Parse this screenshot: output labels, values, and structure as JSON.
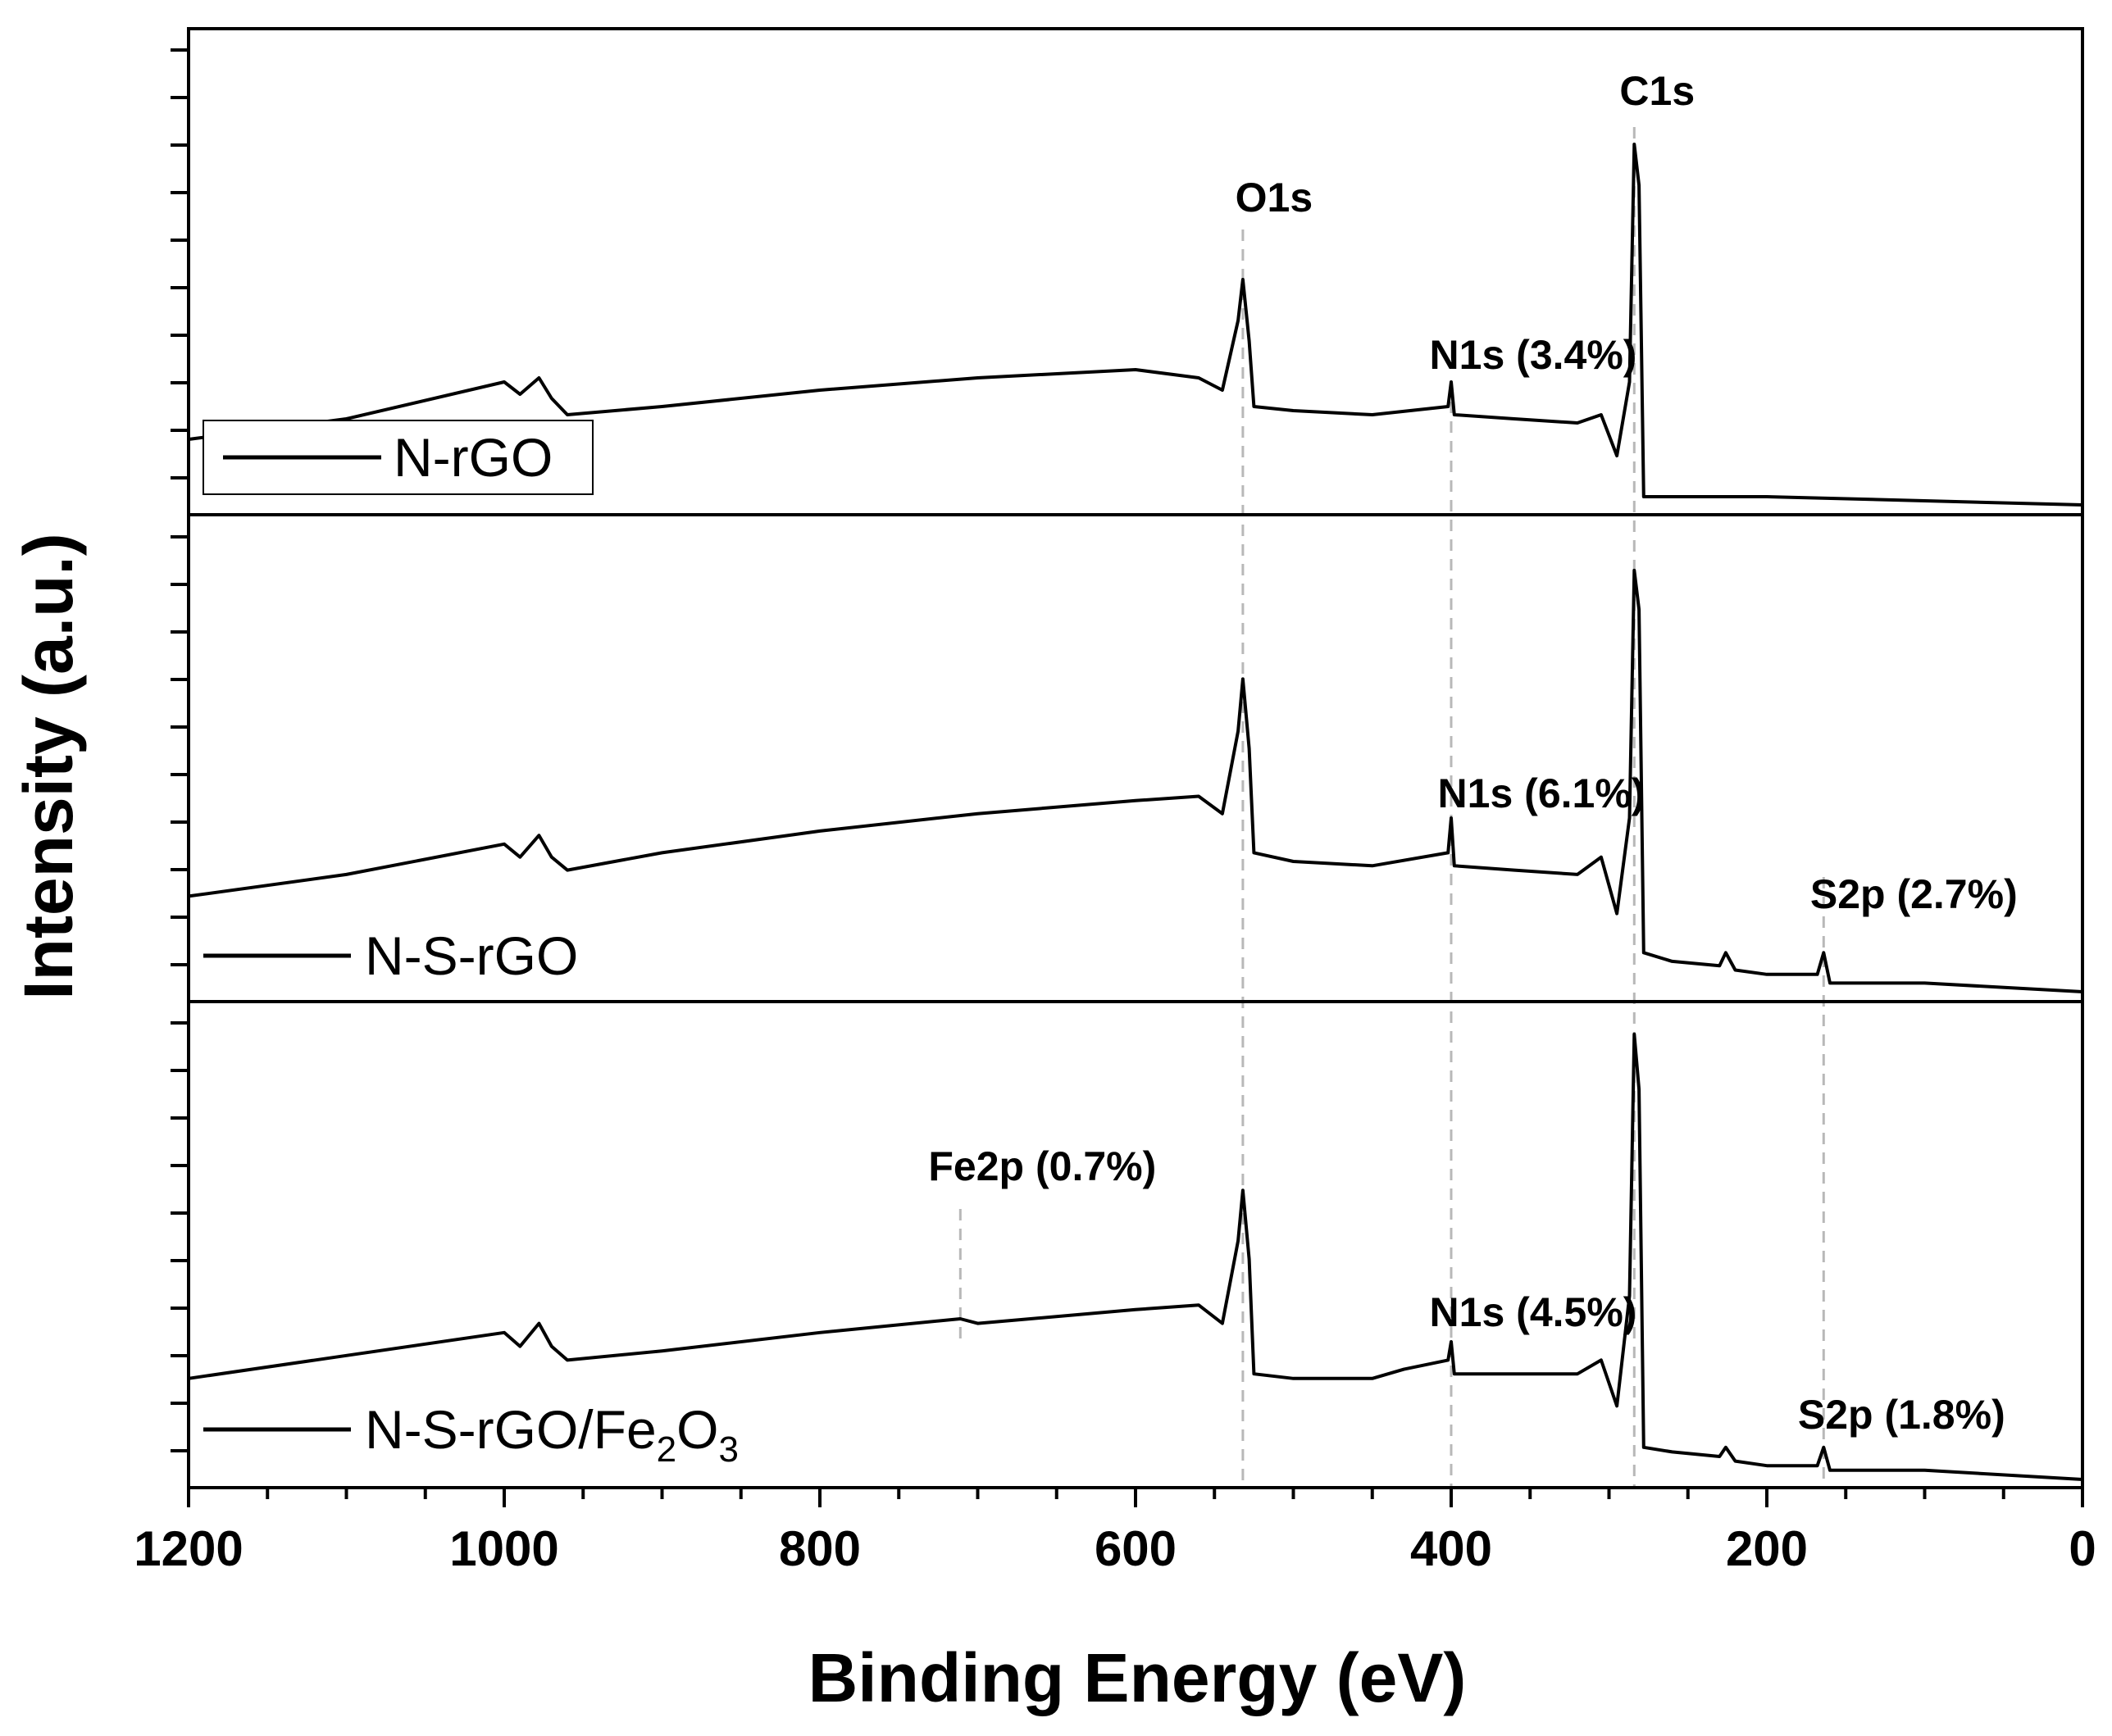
{
  "chart_data": {
    "type": "line",
    "title": "",
    "xlabel": "Binding Energy (eV)",
    "ylabel": "Intensity (a.u.)",
    "xlim": [
      1200,
      0
    ],
    "x_ticks": [
      1200,
      1000,
      800,
      600,
      400,
      200,
      0
    ],
    "x_tick_labels": [
      "1200",
      "1000",
      "800",
      "600",
      "400",
      "200",
      "0"
    ],
    "reference_lines_eV": [
      532,
      400,
      284,
      164,
      711
    ],
    "panels": [
      {
        "name": "N-rGO",
        "legend": "N-rGO",
        "x": [
          1200,
          1100,
          1000,
          990,
          978,
          970,
          960,
          900,
          800,
          700,
          600,
          560,
          545,
          535,
          532,
          528,
          525,
          500,
          450,
          402,
          400,
          398,
          360,
          320,
          305,
          295,
          287,
          284,
          281,
          278,
          260,
          200,
          100,
          0
        ],
        "y": [
          0.16,
          0.21,
          0.3,
          0.27,
          0.31,
          0.26,
          0.22,
          0.24,
          0.28,
          0.31,
          0.33,
          0.31,
          0.28,
          0.45,
          0.55,
          0.4,
          0.24,
          0.23,
          0.22,
          0.24,
          0.3,
          0.22,
          0.21,
          0.2,
          0.22,
          0.12,
          0.3,
          0.88,
          0.78,
          0.02,
          0.02,
          0.02,
          0.01,
          0.0
        ],
        "labels": [
          {
            "text": "O1s",
            "x_eV": 532
          },
          {
            "text": "C1s",
            "x_eV": 284
          },
          {
            "text": "N1s (3.4%)",
            "x_eV": 400
          }
        ]
      },
      {
        "name": "N-S-rGO",
        "legend": "N-S-rGO",
        "x": [
          1200,
          1100,
          1000,
          990,
          978,
          970,
          960,
          900,
          800,
          700,
          600,
          560,
          545,
          535,
          532,
          528,
          525,
          500,
          450,
          402,
          400,
          398,
          360,
          320,
          305,
          295,
          287,
          284,
          281,
          278,
          260,
          230,
          226,
          220,
          200,
          168,
          164,
          160,
          100,
          0
        ],
        "y": [
          0.22,
          0.27,
          0.34,
          0.31,
          0.36,
          0.31,
          0.28,
          0.32,
          0.37,
          0.41,
          0.44,
          0.45,
          0.41,
          0.6,
          0.72,
          0.56,
          0.32,
          0.3,
          0.29,
          0.32,
          0.4,
          0.29,
          0.28,
          0.27,
          0.31,
          0.18,
          0.4,
          0.97,
          0.88,
          0.09,
          0.07,
          0.06,
          0.09,
          0.05,
          0.04,
          0.04,
          0.09,
          0.02,
          0.02,
          0.0
        ],
        "labels": [
          {
            "text": "N1s (6.1%)",
            "x_eV": 400
          },
          {
            "text": "S2p (2.7%)",
            "x_eV": 164
          }
        ]
      },
      {
        "name": "N-S-rGO/Fe2O3",
        "legend": "N-S-rGO/Fe",
        "legend_sub1": "2",
        "legend_mid": "O",
        "legend_sub2": "3",
        "x": [
          1200,
          1100,
          1000,
          990,
          978,
          970,
          960,
          900,
          800,
          711,
          700,
          600,
          560,
          545,
          535,
          532,
          528,
          525,
          500,
          450,
          430,
          402,
          400,
          398,
          360,
          320,
          305,
          295,
          287,
          284,
          281,
          278,
          260,
          230,
          226,
          220,
          200,
          168,
          164,
          160,
          100,
          0
        ],
        "y": [
          0.22,
          0.27,
          0.32,
          0.29,
          0.34,
          0.29,
          0.26,
          0.28,
          0.32,
          0.35,
          0.34,
          0.37,
          0.38,
          0.34,
          0.52,
          0.63,
          0.48,
          0.23,
          0.22,
          0.22,
          0.24,
          0.26,
          0.3,
          0.23,
          0.23,
          0.23,
          0.26,
          0.16,
          0.4,
          0.97,
          0.85,
          0.07,
          0.06,
          0.05,
          0.07,
          0.04,
          0.03,
          0.03,
          0.07,
          0.02,
          0.02,
          0.0
        ],
        "labels": [
          {
            "text": "Fe2p (0.7%)",
            "x_eV": 711
          },
          {
            "text": "N1s (4.5%)",
            "x_eV": 400
          },
          {
            "text": "S2p (1.8%)",
            "x_eV": 164
          }
        ]
      }
    ]
  }
}
